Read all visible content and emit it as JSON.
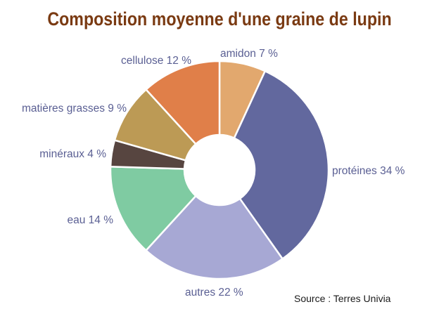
{
  "chart_data": {
    "type": "pie",
    "title": "Composition moyenne d'une graine de lupin",
    "source": "Source : Terres Univia",
    "slices": [
      {
        "label": "amidon 7 %",
        "value": 7,
        "color": "#e2a86e"
      },
      {
        "label": "protéines 34 %",
        "value": 34,
        "color": "#62689e"
      },
      {
        "label": "autres 22 %",
        "value": 22,
        "color": "#a7a8d4"
      },
      {
        "label": "eau 14 %",
        "value": 14,
        "color": "#7fcba2"
      },
      {
        "label": "minéraux 4 %",
        "value": 4,
        "color": "#574540"
      },
      {
        "label": "matières grasses 9 %",
        "value": 9,
        "color": "#bc9a55"
      },
      {
        "label": "cellulose 12 %",
        "value": 12,
        "color": "#e07f49"
      }
    ]
  }
}
